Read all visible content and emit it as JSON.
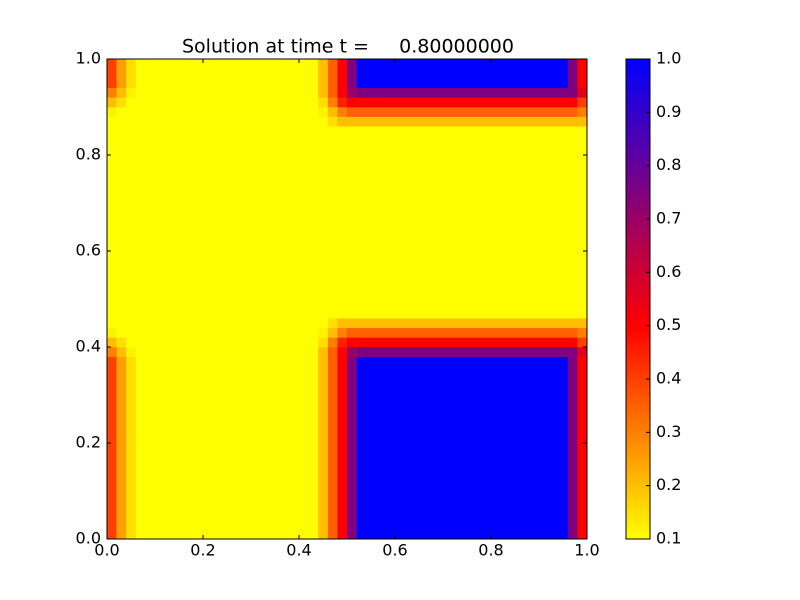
{
  "chart_data": {
    "type": "heatmap",
    "title": "Solution at time t =     0.80000000",
    "x_edges": [
      0,
      0.02,
      0.04,
      0.06,
      0.44,
      0.46,
      0.48,
      0.5,
      0.52,
      0.96,
      0.98,
      1.0
    ],
    "y_edges": [
      0,
      0.38,
      0.4,
      0.42,
      0.44,
      0.46,
      0.86,
      0.88,
      0.9,
      0.92,
      0.94,
      1.0
    ],
    "z": [
      [
        0.4,
        0.25,
        0.15,
        0.1,
        0.2,
        0.35,
        0.5,
        0.75,
        1.0,
        0.75,
        0.5
      ],
      [
        0.3,
        0.2,
        0.12,
        0.1,
        0.2,
        0.35,
        0.5,
        0.7,
        0.75,
        0.75,
        0.55
      ],
      [
        0.2,
        0.15,
        0.1,
        0.1,
        0.15,
        0.3,
        0.45,
        0.5,
        0.5,
        0.5,
        0.4
      ],
      [
        0.12,
        0.1,
        0.1,
        0.1,
        0.12,
        0.2,
        0.3,
        0.35,
        0.35,
        0.35,
        0.3
      ],
      [
        0.1,
        0.1,
        0.1,
        0.1,
        0.1,
        0.15,
        0.2,
        0.2,
        0.2,
        0.2,
        0.2
      ],
      [
        0.1,
        0.1,
        0.1,
        0.1,
        0.1,
        0.1,
        0.1,
        0.1,
        0.1,
        0.1,
        0.1
      ],
      [
        0.1,
        0.1,
        0.1,
        0.1,
        0.1,
        0.15,
        0.2,
        0.2,
        0.2,
        0.2,
        0.2
      ],
      [
        0.12,
        0.1,
        0.1,
        0.1,
        0.12,
        0.2,
        0.3,
        0.35,
        0.35,
        0.35,
        0.3
      ],
      [
        0.2,
        0.15,
        0.1,
        0.1,
        0.15,
        0.3,
        0.45,
        0.5,
        0.5,
        0.5,
        0.4
      ],
      [
        0.3,
        0.2,
        0.12,
        0.1,
        0.2,
        0.35,
        0.5,
        0.7,
        0.75,
        0.75,
        0.55
      ],
      [
        0.4,
        0.25,
        0.15,
        0.1,
        0.2,
        0.35,
        0.5,
        0.75,
        1.0,
        0.75,
        0.5
      ]
    ],
    "colormap": [
      {
        "value": 0.1,
        "color": "#ffff00"
      },
      {
        "value": 0.5,
        "color": "#ff0000"
      },
      {
        "value": 1.0,
        "color": "#0000ff"
      }
    ],
    "xlim": [
      0,
      1
    ],
    "ylim": [
      0,
      1
    ],
    "xticks": [
      {
        "value": 0,
        "label": "0.0"
      },
      0.2,
      0.4,
      0.6,
      0.8,
      {
        "value": 1,
        "label": "1.0"
      }
    ],
    "yticks": [
      {
        "value": 0,
        "label": "0.0"
      },
      0.2,
      0.4,
      0.6,
      0.8,
      {
        "value": 1,
        "label": "1.0"
      }
    ],
    "colorbar_lim": [
      0.1,
      1.0
    ],
    "colorbar_ticks": [
      0.1,
      0.2,
      0.3,
      0.4,
      0.5,
      0.6,
      0.7,
      0.8,
      0.9,
      {
        "value": 1,
        "label": "1.0"
      }
    ]
  }
}
